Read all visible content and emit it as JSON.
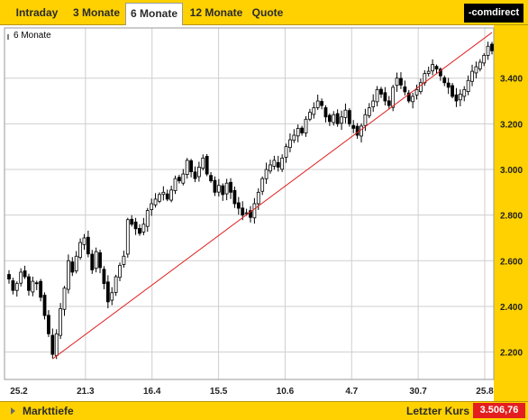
{
  "tabs": [
    {
      "label": "Intraday",
      "active": false
    },
    {
      "label": "3 Monate",
      "active": false
    },
    {
      "label": "6 Monate",
      "active": true
    },
    {
      "label": "12 Monate",
      "active": false
    },
    {
      "label": "Quote",
      "active": false
    }
  ],
  "brand": "-comdirect",
  "bottom": {
    "markttiefe_label": "Markttiefe",
    "letzter_kurs_label": "Letzter Kurs",
    "letzter_kurs_value": "3.506,76"
  },
  "colors": {
    "accent": "#ffd100",
    "trendline": "#e02020",
    "last_price_bg": "#e41e1e"
  },
  "chart_data": {
    "type": "candlestick",
    "legend": "6 Monate",
    "ylim": [
      2080,
      3620
    ],
    "y_ticks": [
      {
        "value": 2200,
        "label": "2.200"
      },
      {
        "value": 2400,
        "label": "2.400"
      },
      {
        "value": 2600,
        "label": "2.600"
      },
      {
        "value": 2800,
        "label": "2.800"
      },
      {
        "value": 3000,
        "label": "3.000"
      },
      {
        "value": 3200,
        "label": "3.200"
      },
      {
        "value": 3400,
        "label": "3.400"
      }
    ],
    "x_labels": [
      "25.2",
      "21.3",
      "16.4",
      "15.5",
      "10.6",
      "4.7",
      "30.7",
      "25.8"
    ],
    "grid": true,
    "close": [
      2520,
      2470,
      2500,
      2550,
      2530,
      2470,
      2510,
      2500,
      2440,
      2360,
      2280,
      2190,
      2280,
      2390,
      2480,
      2600,
      2550,
      2620,
      2680,
      2700,
      2630,
      2560,
      2640,
      2570,
      2500,
      2420,
      2460,
      2530,
      2580,
      2620,
      2780,
      2760,
      2740,
      2720,
      2760,
      2820,
      2850,
      2870,
      2890,
      2900,
      2870,
      2910,
      2960,
      2950,
      2980,
      3040,
      2990,
      2960,
      3010,
      3050,
      2980,
      2950,
      2900,
      2930,
      2890,
      2940,
      2900,
      2850,
      2830,
      2800,
      2810,
      2790,
      2850,
      2900,
      2960,
      3000,
      3020,
      3040,
      3010,
      3050,
      3100,
      3130,
      3150,
      3180,
      3160,
      3220,
      3250,
      3270,
      3300,
      3280,
      3230,
      3210,
      3240,
      3200,
      3230,
      3260,
      3200,
      3180,
      3150,
      3190,
      3240,
      3270,
      3300,
      3350,
      3330,
      3300,
      3280,
      3360,
      3400,
      3370,
      3340,
      3300,
      3320,
      3350,
      3380,
      3420,
      3430,
      3460,
      3440,
      3410,
      3380,
      3360,
      3320,
      3300,
      3330,
      3350,
      3390,
      3430,
      3450,
      3470,
      3500,
      3540,
      3520
    ]
  }
}
